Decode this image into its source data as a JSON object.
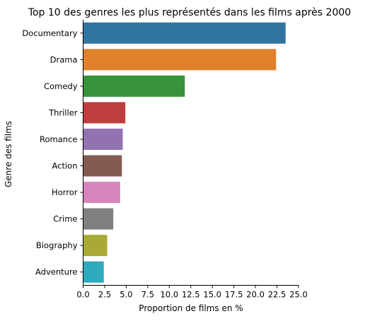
{
  "chart_data": {
    "type": "bar",
    "orientation": "horizontal",
    "title": "Top 10 des genres les plus représentés dans les films après 2000",
    "xlabel": "Proportion de films en %",
    "ylabel": "Genre des films",
    "xlim": [
      0,
      25
    ],
    "xticks": [
      "0.0",
      "2.5",
      "5.0",
      "7.5",
      "10.0",
      "12.5",
      "15.0",
      "17.5",
      "20.0",
      "22.5",
      "25.0"
    ],
    "grid": false,
    "categories": [
      "Documentary",
      "Drama",
      "Comedy",
      "Thriller",
      "Romance",
      "Action",
      "Horror",
      "Crime",
      "Biography",
      "Adventure"
    ],
    "values": [
      23.5,
      22.4,
      11.8,
      4.9,
      4.6,
      4.5,
      4.3,
      3.5,
      2.8,
      2.4
    ],
    "colors": [
      "#3274a1",
      "#e1812c",
      "#3a923a",
      "#c03d3e",
      "#9372b2",
      "#845b53",
      "#d684bd",
      "#7f7f7f",
      "#a9aa35",
      "#2eaabc"
    ]
  }
}
